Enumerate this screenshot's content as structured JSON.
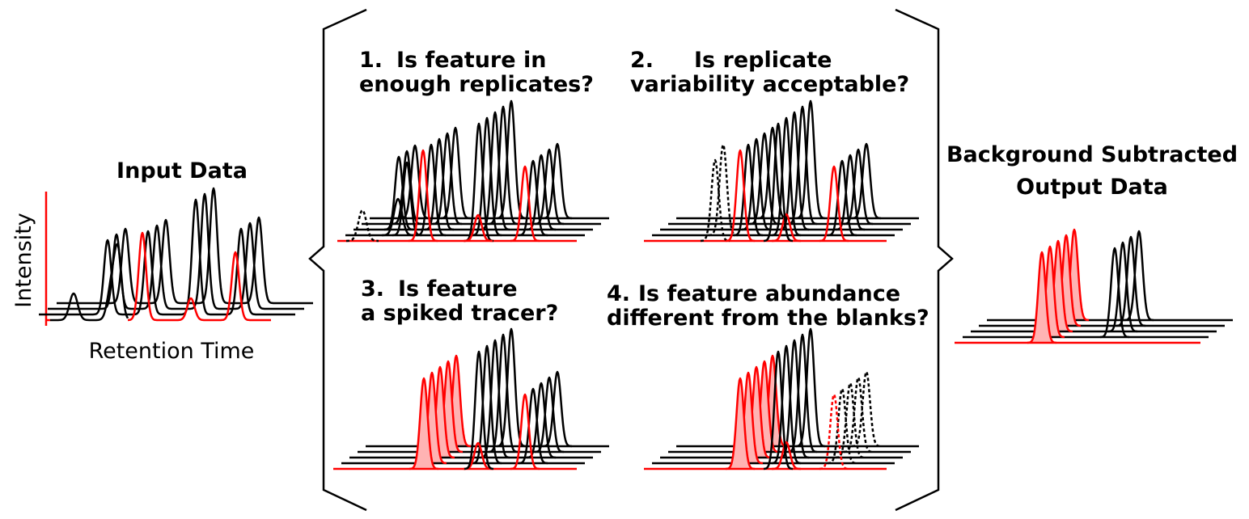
{
  "input": {
    "title": "Input Data",
    "y_axis_label": "Intensity",
    "x_axis_label": "Retention Time"
  },
  "output": {
    "title_line1": "Background Subtracted",
    "title_line2": "Output Data"
  },
  "steps": [
    {
      "number": "1.",
      "line1": "Is feature in",
      "line2": "enough replicates?"
    },
    {
      "number": "2.",
      "line1": "Is replicate",
      "line2": "variability acceptable?"
    },
    {
      "number": "3.",
      "line1": "Is feature",
      "line2": "a spiked tracer?"
    },
    {
      "number": "4.",
      "line1": "Is feature abundance",
      "line2": "different from the blanks?"
    }
  ],
  "colors": {
    "black": "#000000",
    "red": "#ff0000",
    "pink_fill": "#ffb3b3"
  }
}
